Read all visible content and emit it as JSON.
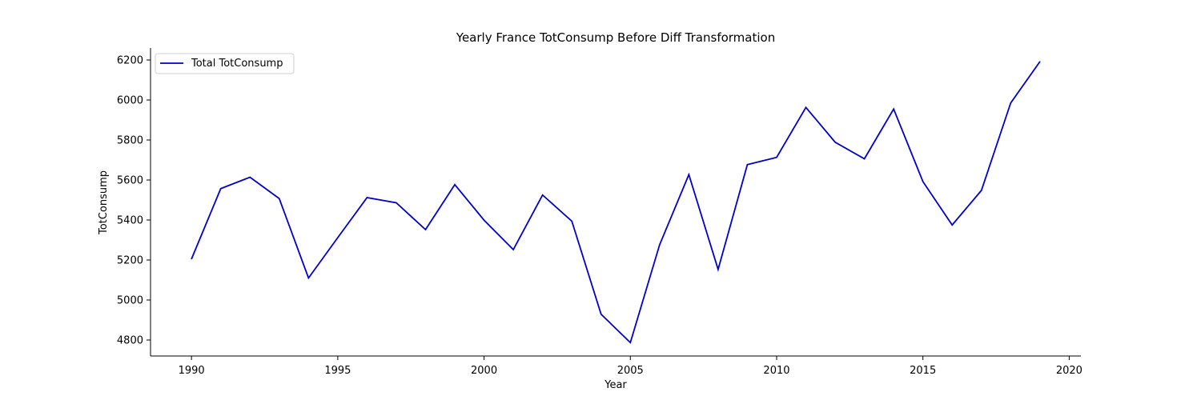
{
  "chart_data": {
    "type": "line",
    "title": "Yearly France TotConsump Before Diff Transformation",
    "xlabel": "Year",
    "ylabel": "TotConsump",
    "xlim": [
      1988.6,
      2020.4
    ],
    "ylim": [
      4720,
      6260
    ],
    "xticks": [
      1990,
      1995,
      2000,
      2005,
      2010,
      2015,
      2020
    ],
    "yticks": [
      4800,
      5000,
      5200,
      5400,
      5600,
      5800,
      6000,
      6200
    ],
    "grid": false,
    "legend_position": "top-left",
    "series": [
      {
        "name": "Total TotConsump",
        "color": "#0000cc",
        "x": [
          1990,
          1991,
          1992,
          1993,
          1994,
          1995,
          1996,
          1997,
          1998,
          1999,
          2000,
          2001,
          2002,
          2003,
          2004,
          2005,
          2006,
          2007,
          2008,
          2009,
          2010,
          2011,
          2012,
          2013,
          2014,
          2015,
          2016,
          2017,
          2018,
          2019
        ],
        "values": [
          5205,
          5557,
          5614,
          5507,
          5110,
          5312,
          5512,
          5486,
          5352,
          5577,
          5399,
          5252,
          5525,
          5394,
          4929,
          4787,
          5276,
          5627,
          5153,
          5677,
          5713,
          5963,
          5789,
          5706,
          5955,
          5592,
          5375,
          5548,
          5985,
          6192
        ]
      }
    ]
  }
}
